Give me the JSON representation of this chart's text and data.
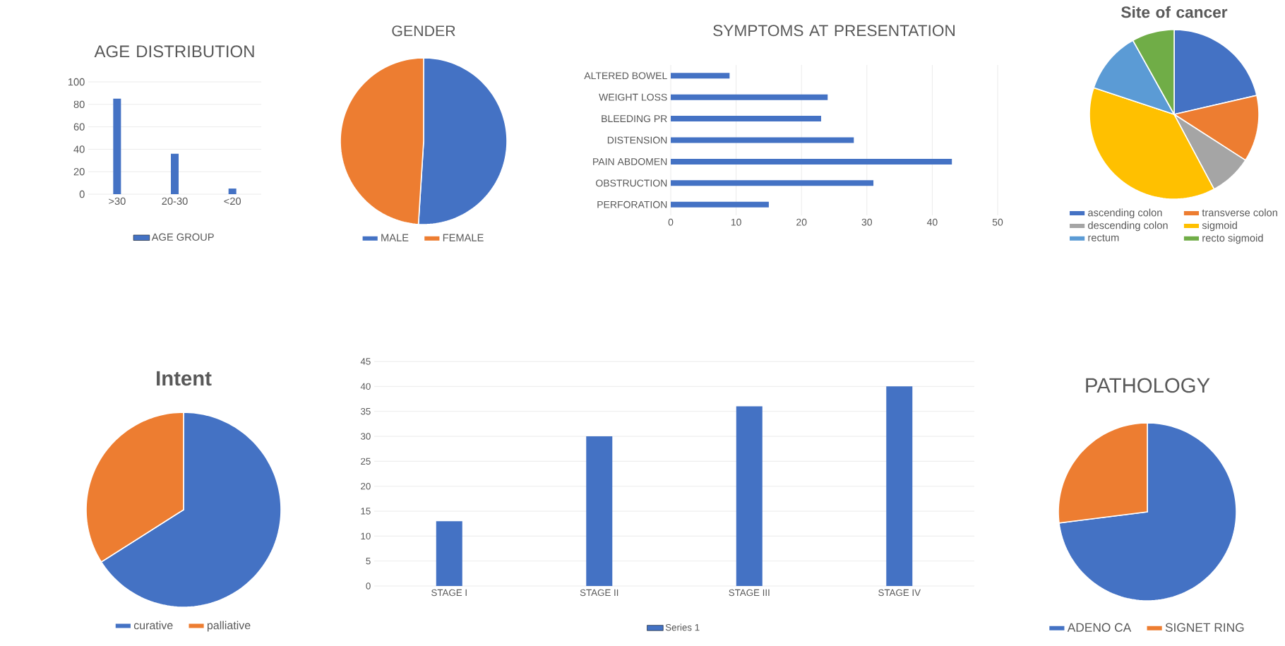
{
  "chart_data": [
    {
      "type": "bar",
      "title": "AGE DISTRIBUTION",
      "categories": [
        ">30",
        "20-30",
        "<20"
      ],
      "series": [
        {
          "name": "AGE GROUP",
          "color": "#4472c4",
          "values": [
            85,
            36,
            5
          ]
        }
      ],
      "ylim": [
        0,
        100
      ],
      "yticks": [
        0,
        20,
        40,
        60,
        80,
        100
      ],
      "grid": "y",
      "legend": "bottom"
    },
    {
      "type": "pie",
      "title": "GENDER",
      "categories": [
        "MALE",
        "FEMALE"
      ],
      "values": [
        51,
        49
      ],
      "colors": [
        "#4472c4",
        "#ed7d31"
      ],
      "legend": "bottom"
    },
    {
      "type": "bar",
      "orientation": "horizontal",
      "title": "SYMPTOMS AT PRESENTATION",
      "categories": [
        "ALTERED BOWEL",
        "WEIGHT LOSS",
        "BLEEDING PR",
        "DISTENSION",
        "PAIN ABDOMEN",
        "OBSTRUCTION",
        "PERFORATION"
      ],
      "values": [
        9,
        24,
        23,
        28,
        43,
        31,
        15
      ],
      "color": "#4472c4",
      "xlim": [
        0,
        50
      ],
      "xticks": [
        0,
        10,
        20,
        30,
        40,
        50
      ],
      "grid": "x"
    },
    {
      "type": "pie",
      "title": "Site of cancer",
      "categories": [
        "ascending colon",
        "transverse colon",
        "descending colon",
        "sigmoid",
        "rectum",
        "recto sigmoid"
      ],
      "values": [
        21.4,
        12.7,
        8.1,
        37.9,
        11.8,
        8.1
      ],
      "colors": [
        "#4472c4",
        "#ed7d31",
        "#a5a5a5",
        "#ffc000",
        "#5b9bd5",
        "#70ad47"
      ],
      "legend": "bottom"
    },
    {
      "type": "pie",
      "title": "Intent",
      "categories": [
        "curative",
        "palliative"
      ],
      "values": [
        66,
        34
      ],
      "colors": [
        "#4472c4",
        "#ed7d31"
      ],
      "legend": "bottom"
    },
    {
      "type": "bar",
      "categories": [
        "STAGE I",
        "STAGE II",
        "STAGE III",
        "STAGE IV"
      ],
      "series": [
        {
          "name": "Series 1",
          "color": "#4472c4",
          "values": [
            13,
            30,
            36,
            40
          ]
        }
      ],
      "ylim": [
        0,
        45
      ],
      "yticks": [
        0,
        5,
        10,
        15,
        20,
        25,
        30,
        35,
        40,
        45
      ],
      "grid": "y",
      "legend": "bottom"
    },
    {
      "type": "pie",
      "title": "PATHOLOGY",
      "categories": [
        "ADENO CA",
        "SIGNET RING"
      ],
      "values": [
        73,
        27
      ],
      "colors": [
        "#4472c4",
        "#ed7d31"
      ],
      "legend": "bottom"
    }
  ]
}
